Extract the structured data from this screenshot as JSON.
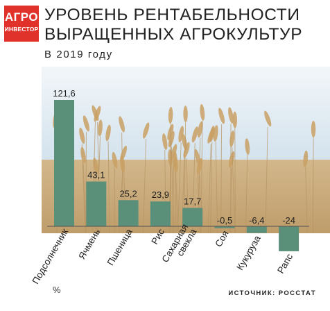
{
  "logo": {
    "line1": "АГРО",
    "line2": "ИНВЕСТОР"
  },
  "header": {
    "title_line1": "УРОВЕНЬ РЕНТАБЕЛЬНОСТИ",
    "title_line2": "ВЫРАЩЕННЫХ АГРОКУЛЬТУР",
    "subtitle": "В 2019 году"
  },
  "unit_label": "%",
  "source": "ИСТОЧНИК: РОССТАТ",
  "colors": {
    "bar": "#5a8f7a",
    "logo": "#e0312b",
    "sky": "#cfe0ec",
    "wheat": "#c9a56c"
  },
  "chart_data": {
    "type": "bar",
    "title": "УРОВЕНЬ РЕНТАБЕЛЬНОСТИ ВЫРАЩЕННЫХ АГРОКУЛЬТУР",
    "subtitle": "В 2019 году",
    "ylabel": "%",
    "categories": [
      "Подсолнечник",
      "Ячмень",
      "Пшеница",
      "Рис",
      "Сахарная свекла",
      "Соя",
      "Кукуруза",
      "Рапс"
    ],
    "category_lines": [
      [
        "Подсолнечник"
      ],
      [
        "Ячмень"
      ],
      [
        "Пшеница"
      ],
      [
        "Рис"
      ],
      [
        "Сахарная",
        "свекла"
      ],
      [
        "Соя"
      ],
      [
        "Кукуруза"
      ],
      [
        "Рапс"
      ]
    ],
    "values": [
      121.6,
      43.1,
      25.2,
      23.9,
      17.7,
      -0.5,
      -6.4,
      -24
    ],
    "value_labels": [
      "121,6",
      "43,1",
      "25,2",
      "23,9",
      "17,7",
      "-0,5",
      "-6,4",
      "-24"
    ],
    "ylim": [
      -24,
      121.6
    ],
    "grid": false,
    "legend": "none"
  }
}
